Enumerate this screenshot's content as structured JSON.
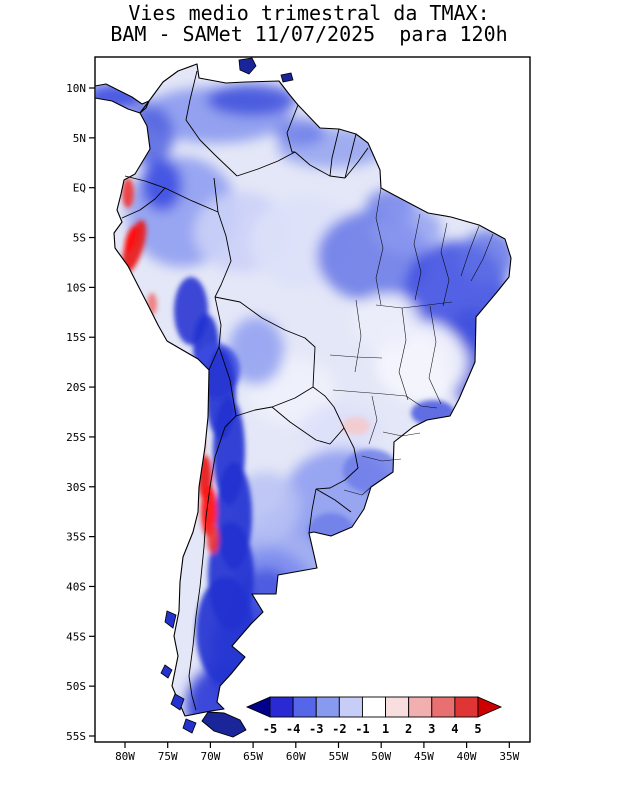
{
  "title": {
    "line1": "Vies medio trimestral da TMAX:",
    "line2": "BAM - SAMet 11/07/2025  para 120h"
  },
  "axes": {
    "lat_labels": [
      "10N",
      "5N",
      "EQ",
      "5S",
      "10S",
      "15S",
      "20S",
      "25S",
      "30S",
      "35S",
      "40S",
      "45S",
      "50S",
      "55S"
    ],
    "lon_labels": [
      "80W",
      "75W",
      "70W",
      "65W",
      "60W",
      "55W",
      "50W",
      "45W",
      "40W",
      "35W"
    ]
  },
  "colorbar": {
    "tick_labels": [
      "-5",
      "-4",
      "-3",
      "-2",
      "-1",
      "1",
      "2",
      "3",
      "4",
      "5"
    ],
    "segment_colors": [
      "#00008B",
      "#2A2AD4",
      "#5566E8",
      "#8899F0",
      "#C6CDF6",
      "#FFFFFF",
      "#F8DEDE",
      "#F2AFAF",
      "#E97070",
      "#E03535",
      "#CC0000"
    ]
  },
  "chart_data": {
    "type": "heatmap",
    "title": "Vies medio trimestral da TMAX: BAM - SAMet 11/07/2025 para 120h",
    "x_ticks": [
      "80W",
      "75W",
      "70W",
      "65W",
      "60W",
      "55W",
      "50W",
      "45W",
      "40W",
      "35W"
    ],
    "y_ticks": [
      "10N",
      "5N",
      "EQ",
      "5S",
      "10S",
      "15S",
      "20S",
      "25S",
      "30S",
      "35S",
      "40S",
      "45S",
      "50S",
      "55S"
    ],
    "colorbar_levels": [
      -5,
      -4,
      -3,
      -2,
      -1,
      1,
      2,
      3,
      4,
      5
    ],
    "colorbar_colors": [
      "#00008B",
      "#2A2AD4",
      "#5566E8",
      "#8899F0",
      "#C6CDF6",
      "#FFFFFF",
      "#F8DEDE",
      "#F2AFAF",
      "#E97070",
      "#E03535",
      "#CC0000"
    ],
    "regions_estimated_bias": [
      {
        "region": "Andes cordillera (Peru-Bolivia-Chile-Argentina)",
        "bias": "-4 to -5"
      },
      {
        "region": "Patagonia / southern Chile and Argentina",
        "bias": "-3 to -5"
      },
      {
        "region": "Peru coastal strip (about 4S-10S)",
        "bias": "+4 to +5"
      },
      {
        "region": "Central Chile coast (about 27S-35S)",
        "bias": "+4 to +5"
      },
      {
        "region": "Northeast Brazil",
        "bias": "-2 to -4"
      },
      {
        "region": "Northern Venezuela / Colombia",
        "bias": "-2 to -3"
      },
      {
        "region": "Central Brazil and Bolivian lowlands",
        "bias": "0 to -1"
      },
      {
        "region": "Southern Brazil / Uruguay / NE Argentina",
        "bias": "-1 to -2"
      }
    ]
  }
}
